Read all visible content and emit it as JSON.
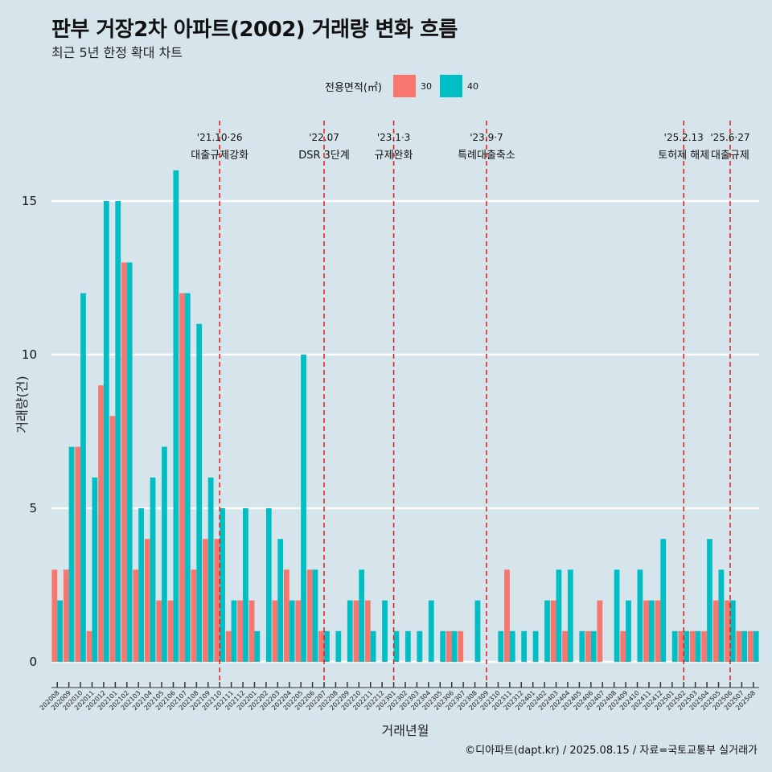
{
  "chart_data": {
    "type": "bar",
    "title": "판부 거장2차 아파트(2002) 거래량 변화 흐름",
    "subtitle": "최근 5년 한정 확대 차트",
    "xlabel": "거래년월",
    "ylabel": "거래량(건)",
    "ylim": [
      0,
      17.5
    ],
    "yticks": [
      0,
      5,
      10,
      15
    ],
    "grid": true,
    "legend": {
      "title": "전용면적(㎡)",
      "position": "top",
      "entries": [
        {
          "name": "30",
          "color": "#f8766d"
        },
        {
          "name": "40",
          "color": "#00bfc4"
        }
      ]
    },
    "categories": [
      "202008",
      "202009",
      "202010",
      "202011",
      "202012",
      "202101",
      "202102",
      "202103",
      "202104",
      "202105",
      "202106",
      "202107",
      "202108",
      "202109",
      "202110",
      "202111",
      "202112",
      "202201",
      "202202",
      "202203",
      "202204",
      "202205",
      "202206",
      "202207",
      "202208",
      "202209",
      "202210",
      "202211",
      "202212",
      "202301",
      "202302",
      "202303",
      "202304",
      "202305",
      "202306",
      "202307",
      "202308",
      "202309",
      "202310",
      "202311",
      "202312",
      "202401",
      "202402",
      "202403",
      "202404",
      "202405",
      "202406",
      "202407",
      "202408",
      "202409",
      "202410",
      "202411",
      "202412",
      "202501",
      "202502",
      "202503",
      "202504",
      "202505",
      "202506",
      "202507",
      "202508"
    ],
    "series": [
      {
        "name": "30",
        "color": "#f8766d",
        "values": [
          3,
          3,
          7,
          1,
          9,
          8,
          13,
          3,
          4,
          2,
          2,
          12,
          3,
          4,
          4,
          1,
          2,
          2,
          0,
          2,
          3,
          2,
          3,
          1,
          0,
          0,
          2,
          2,
          0,
          0,
          0,
          0,
          0,
          0,
          1,
          1,
          0,
          0,
          0,
          3,
          0,
          0,
          0,
          2,
          1,
          0,
          1,
          2,
          0,
          1,
          0,
          2,
          2,
          0,
          1,
          1,
          1,
          2,
          2,
          1,
          1
        ]
      },
      {
        "name": "40",
        "color": "#00bfc4",
        "values": [
          2,
          7,
          12,
          6,
          15,
          15,
          13,
          5,
          6,
          7,
          16,
          12,
          11,
          6,
          5,
          2,
          5,
          1,
          5,
          4,
          2,
          10,
          3,
          1,
          1,
          2,
          3,
          1,
          2,
          1,
          1,
          1,
          2,
          1,
          1,
          0,
          2,
          0,
          1,
          1,
          1,
          1,
          2,
          3,
          3,
          1,
          1,
          0,
          3,
          2,
          3,
          2,
          4,
          1,
          1,
          1,
          4,
          3,
          2,
          1,
          1
        ]
      }
    ],
    "annotations": [
      {
        "date": "'21.10·26",
        "label": "대출규제강화",
        "at": "202110"
      },
      {
        "date": "'22.07",
        "label": "DSR 3단계",
        "at": "202207"
      },
      {
        "date": "'23.1·3",
        "label": "규제완화",
        "at": "202301"
      },
      {
        "date": "'23.9·7",
        "label": "특례대출축소",
        "at": "202309"
      },
      {
        "date": "'25.2.13",
        "label": "토허제 해제",
        "at": "202502"
      },
      {
        "date": "'25.6·27",
        "label": "대출규제",
        "at": "202506"
      }
    ],
    "annotation_color": "#e31a1c"
  },
  "caption": "©디아파트(dapt.kr) / 2025.08.15 / 자료=국토교통부 실거래가"
}
